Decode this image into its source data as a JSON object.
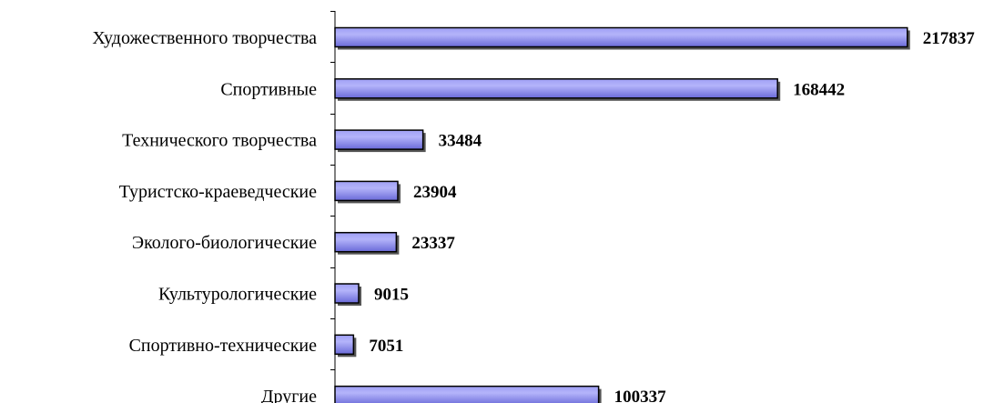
{
  "chart_data": {
    "type": "bar",
    "orientation": "horizontal",
    "categories": [
      "Художественного творчества",
      "Спортивные",
      "Технического творчества",
      "Туристско-краеведческие",
      "Эколого-биологические",
      "Культурологические",
      "Спортивно-технические",
      "Другие"
    ],
    "values": [
      217837,
      168442,
      33484,
      23904,
      23337,
      9015,
      7051,
      100337
    ],
    "title": "",
    "xlabel": "",
    "ylabel": "",
    "xlim": [
      0,
      220000
    ],
    "grid": false,
    "legend": "none",
    "data_labels": true,
    "colors": {
      "bar_fill": "#9f9ff5",
      "bar_fill_dark": "#6a6ad8",
      "bar_stroke": "#000000",
      "axis": "#000000"
    }
  }
}
